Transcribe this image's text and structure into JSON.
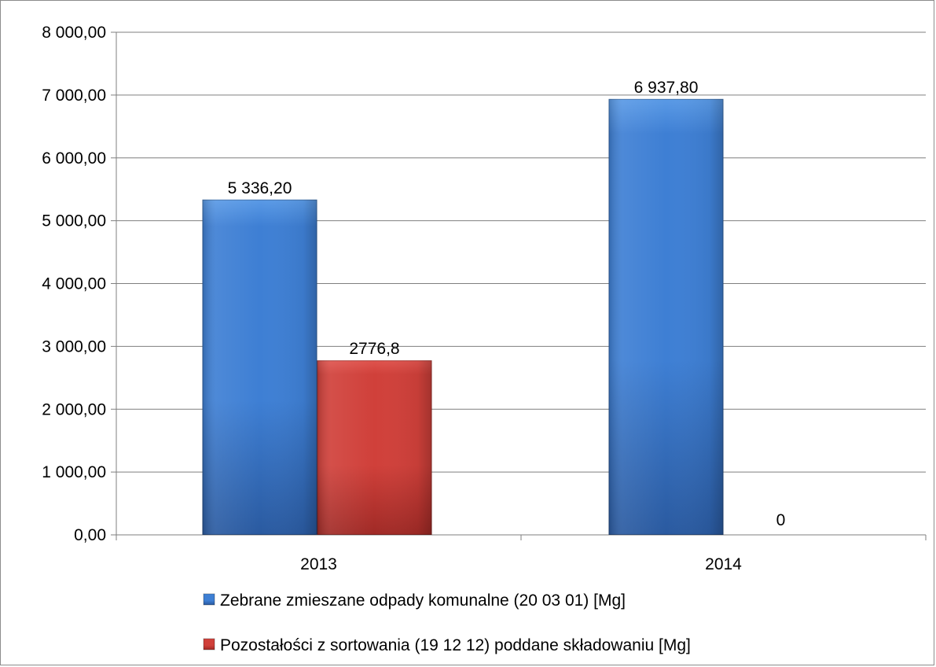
{
  "colors": {
    "series1_top": "#5a9ae6",
    "series1_main": "#3e7fd4",
    "series1_bottom": "#2a5aa0",
    "series2_top": "#e0544e",
    "series2_main": "#d0403a",
    "series2_bottom": "#a02a26",
    "grid": "#7f7f7f",
    "axis": "#7f7f7f"
  },
  "chart_data": {
    "type": "bar",
    "categories": [
      "2013",
      "2014"
    ],
    "series": [
      {
        "name": "Zebrane zmieszane odpady komunalne (20 03 01) [Mg]",
        "values": [
          5336.2,
          6937.8
        ],
        "labels": [
          "5 336,20",
          "6 937,80"
        ]
      },
      {
        "name": "Pozostałości z sortowania (19 12 12) poddane składowaniu [Mg]",
        "values": [
          2776.8,
          0
        ],
        "labels": [
          "2776,8",
          "0"
        ]
      }
    ],
    "ylim": [
      0,
      8000
    ],
    "yticks": [
      0,
      1000,
      2000,
      3000,
      4000,
      5000,
      6000,
      7000,
      8000
    ],
    "ytick_labels": [
      "0,00",
      "1 000,00",
      "2 000,00",
      "3 000,00",
      "4 000,00",
      "5 000,00",
      "6 000,00",
      "7 000,00",
      "8 000,00"
    ],
    "grid": true,
    "legend_position": "bottom",
    "title": "",
    "xlabel": "",
    "ylabel": ""
  }
}
